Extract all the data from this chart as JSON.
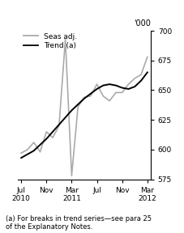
{
  "title": "",
  "unit_label": "'000",
  "ylabel": "",
  "ylim": [
    575,
    700
  ],
  "yticks": [
    575,
    600,
    625,
    650,
    675,
    700
  ],
  "footnote": "(a) For breaks in trend series—see para 25\nof the Explanatory Notes.",
  "legend_entries": [
    "Trend (a)",
    "Seas adj."
  ],
  "trend_color": "#000000",
  "seas_color": "#aaaaaa",
  "background_color": "#ffffff",
  "x_tick_labels": [
    "Jul\n2010",
    "Nov",
    "Mar\n2011",
    "Jul",
    "Nov",
    "Mar\n2012"
  ],
  "x_tick_positions": [
    0,
    4,
    8,
    12,
    16,
    20
  ],
  "trend_x": [
    0,
    1,
    2,
    3,
    4,
    5,
    6,
    7,
    8,
    9,
    10,
    11,
    12,
    13,
    14,
    15,
    16,
    17,
    18,
    19,
    20
  ],
  "trend_y": [
    593,
    596,
    599,
    604,
    609,
    615,
    621,
    627,
    633,
    638,
    643,
    647,
    651,
    654,
    655,
    654,
    652,
    651,
    653,
    658,
    665
  ],
  "seas_x": [
    0,
    1,
    2,
    3,
    4,
    5,
    6,
    7,
    8,
    9,
    10,
    11,
    12,
    13,
    14,
    15,
    16,
    17,
    18,
    19,
    20
  ],
  "seas_y": [
    597,
    600,
    606,
    598,
    615,
    610,
    620,
    693,
    578,
    636,
    644,
    645,
    655,
    645,
    641,
    648,
    648,
    655,
    660,
    663,
    678
  ]
}
